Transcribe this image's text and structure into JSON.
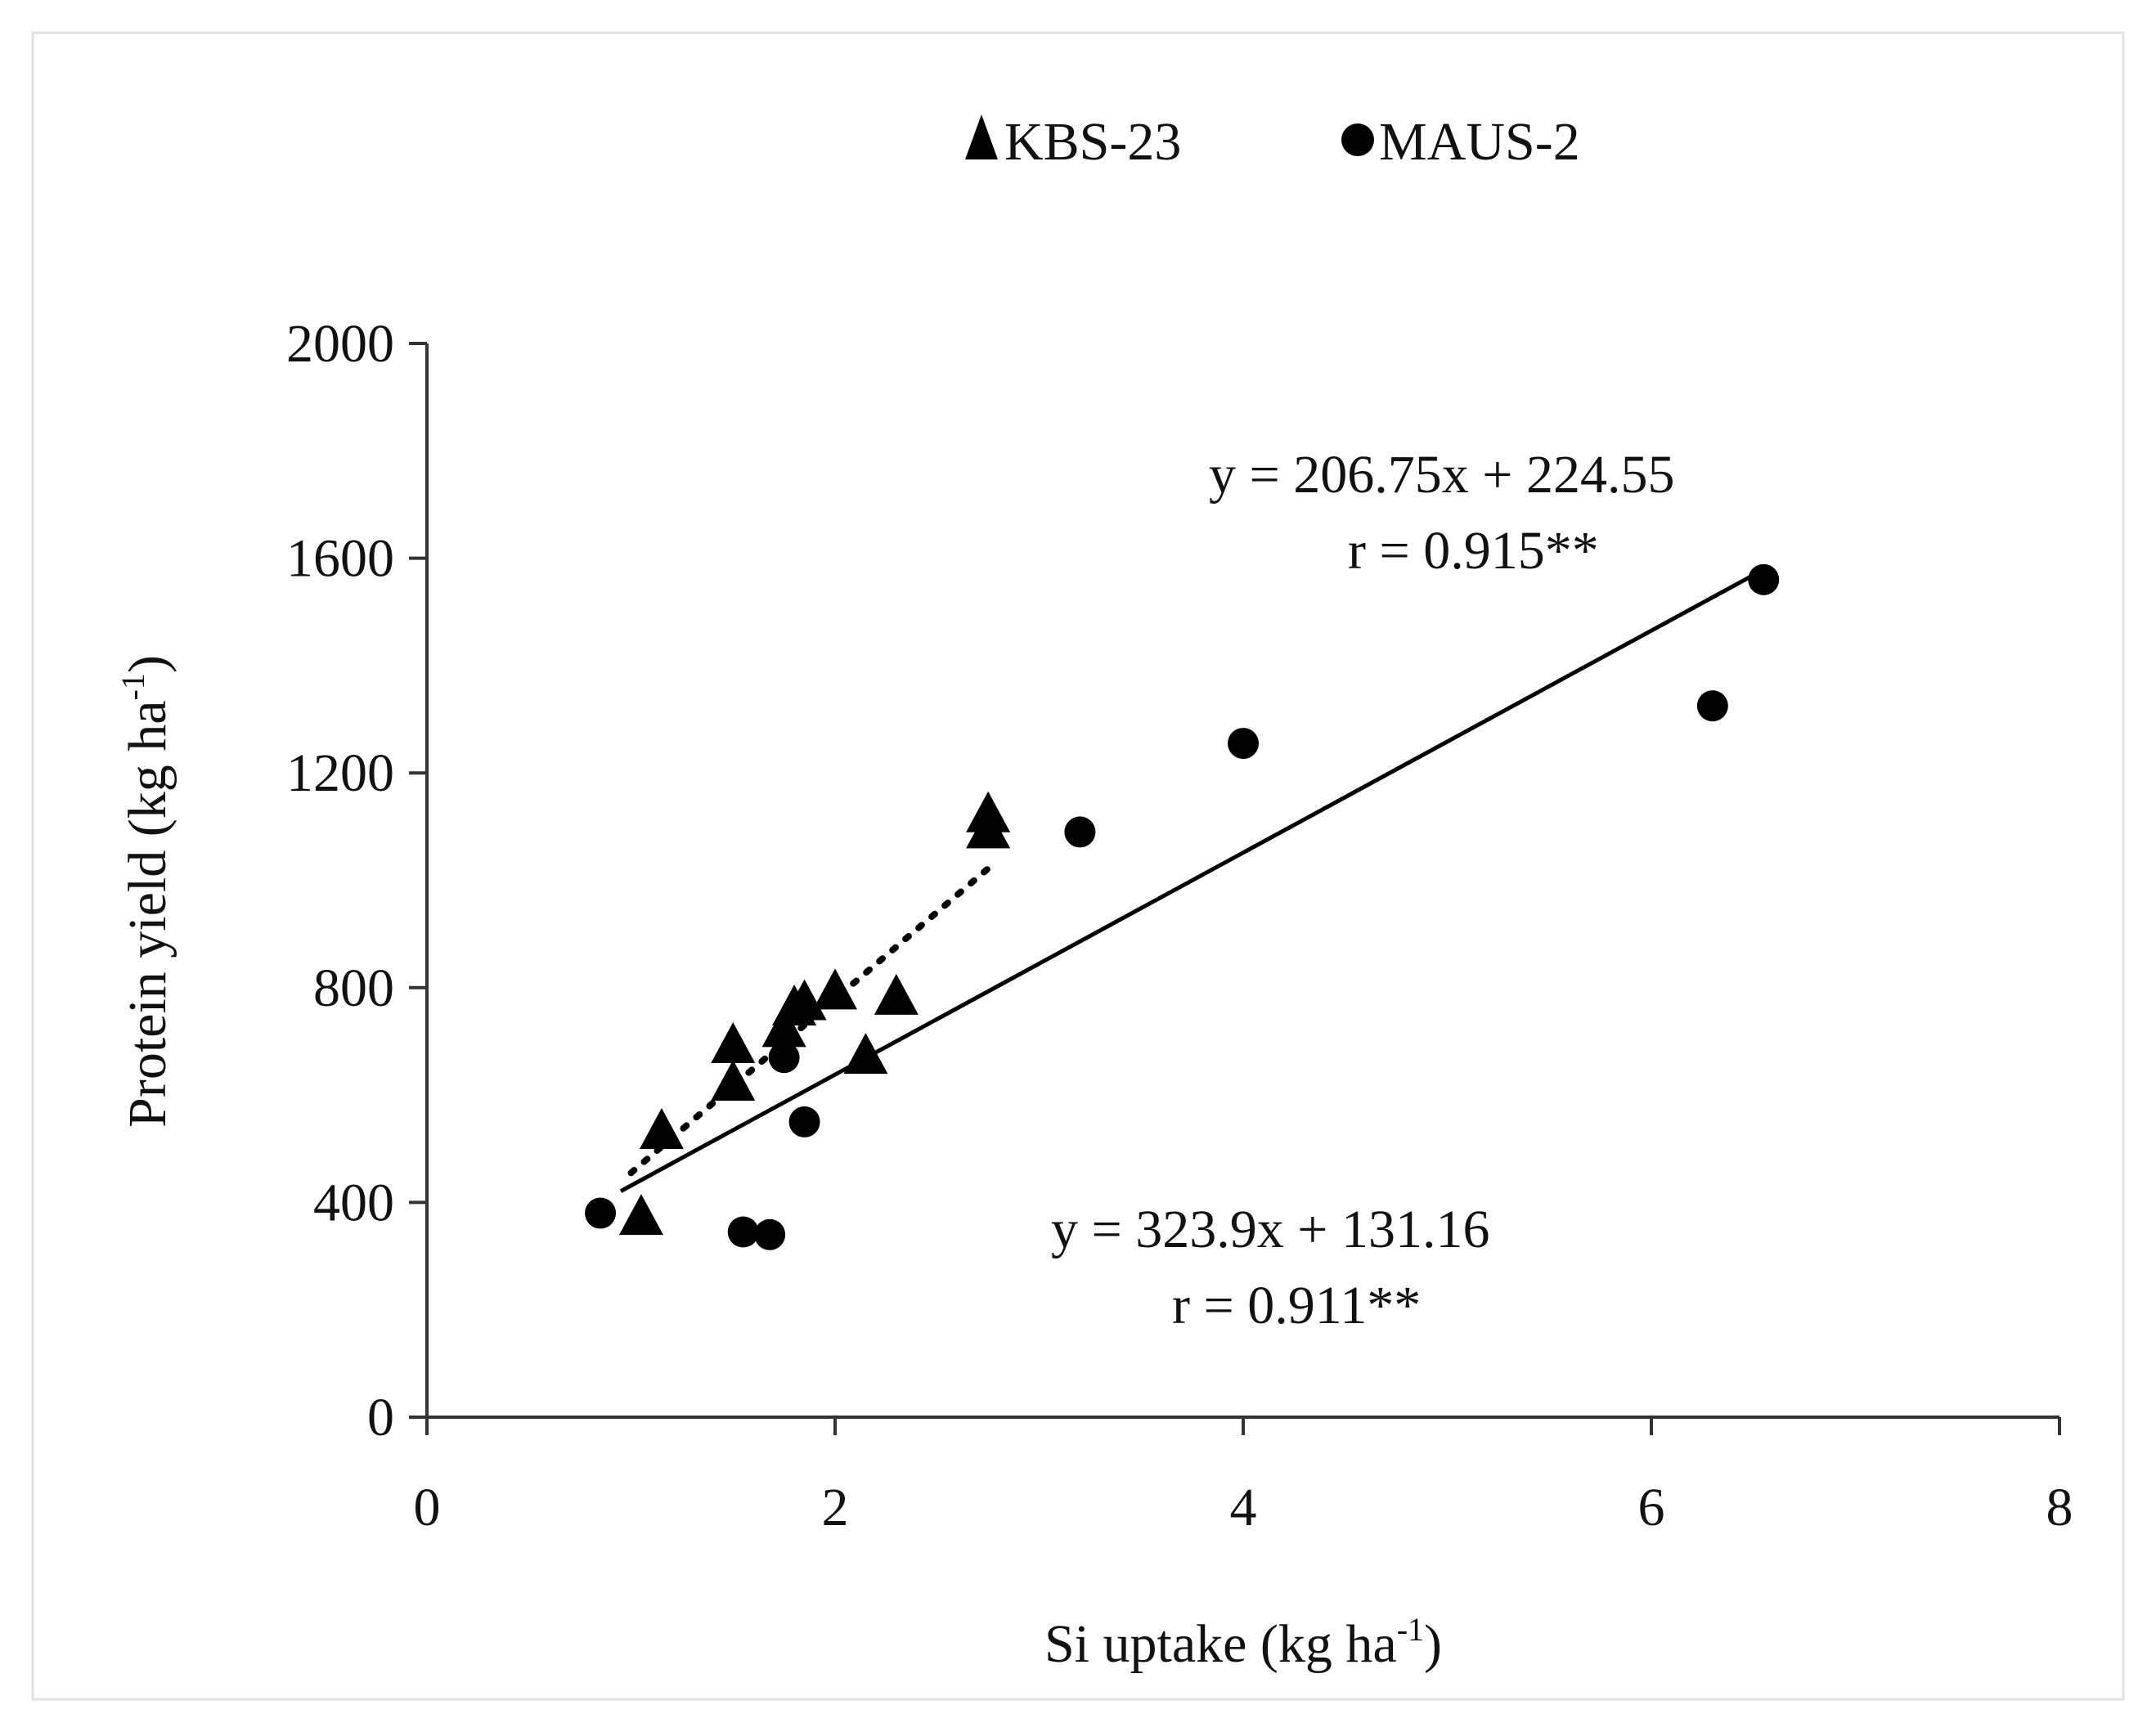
{
  "chart_data": {
    "type": "scatter",
    "xlabel": "Si uptake (kg ha",
    "xlabel_sup": "-1",
    "xlabel_end": ")",
    "ylabel": "Protein yield (kg ha",
    "ylabel_sup": "-1",
    "ylabel_end": ")",
    "xlim": [
      0,
      8
    ],
    "ylim": [
      0,
      2000
    ],
    "x_ticks": [
      0,
      2,
      4,
      6,
      8
    ],
    "y_ticks": [
      0,
      400,
      800,
      1200,
      1600,
      2000
    ],
    "grid": false,
    "legend_position": "top-center",
    "series": [
      {
        "name": "KBS-23",
        "marker": "triangle",
        "color": "#000000",
        "points": [
          [
            1.05,
            370
          ],
          [
            1.15,
            530
          ],
          [
            1.5,
            620
          ],
          [
            1.5,
            690
          ],
          [
            1.75,
            720
          ],
          [
            1.8,
            760
          ],
          [
            1.85,
            770
          ],
          [
            2.0,
            790
          ],
          [
            2.15,
            670
          ],
          [
            2.3,
            780
          ],
          [
            2.75,
            1090
          ],
          [
            2.75,
            1120
          ]
        ],
        "trendline": {
          "style": "dotted",
          "x_range": [
            1.0,
            2.75
          ],
          "slope": 323.9,
          "intercept": 131.16
        }
      },
      {
        "name": "MAUS-2",
        "marker": "circle",
        "color": "#000000",
        "points": [
          [
            0.85,
            380
          ],
          [
            1.55,
            345
          ],
          [
            1.68,
            340
          ],
          [
            1.75,
            670
          ],
          [
            1.85,
            550
          ],
          [
            3.2,
            1090
          ],
          [
            4.0,
            1255
          ],
          [
            6.3,
            1325
          ],
          [
            6.55,
            1560
          ]
        ],
        "trendline": {
          "style": "solid",
          "x_range": [
            0.95,
            6.5
          ],
          "slope": 206.75,
          "intercept": 224.55
        }
      }
    ],
    "annotations": [
      {
        "equation": "y = 206.75x + 224.55",
        "r": "r = 0.915**"
      },
      {
        "equation": "y = 323.9x + 131.16",
        "r": "r = 0.911**"
      }
    ]
  }
}
